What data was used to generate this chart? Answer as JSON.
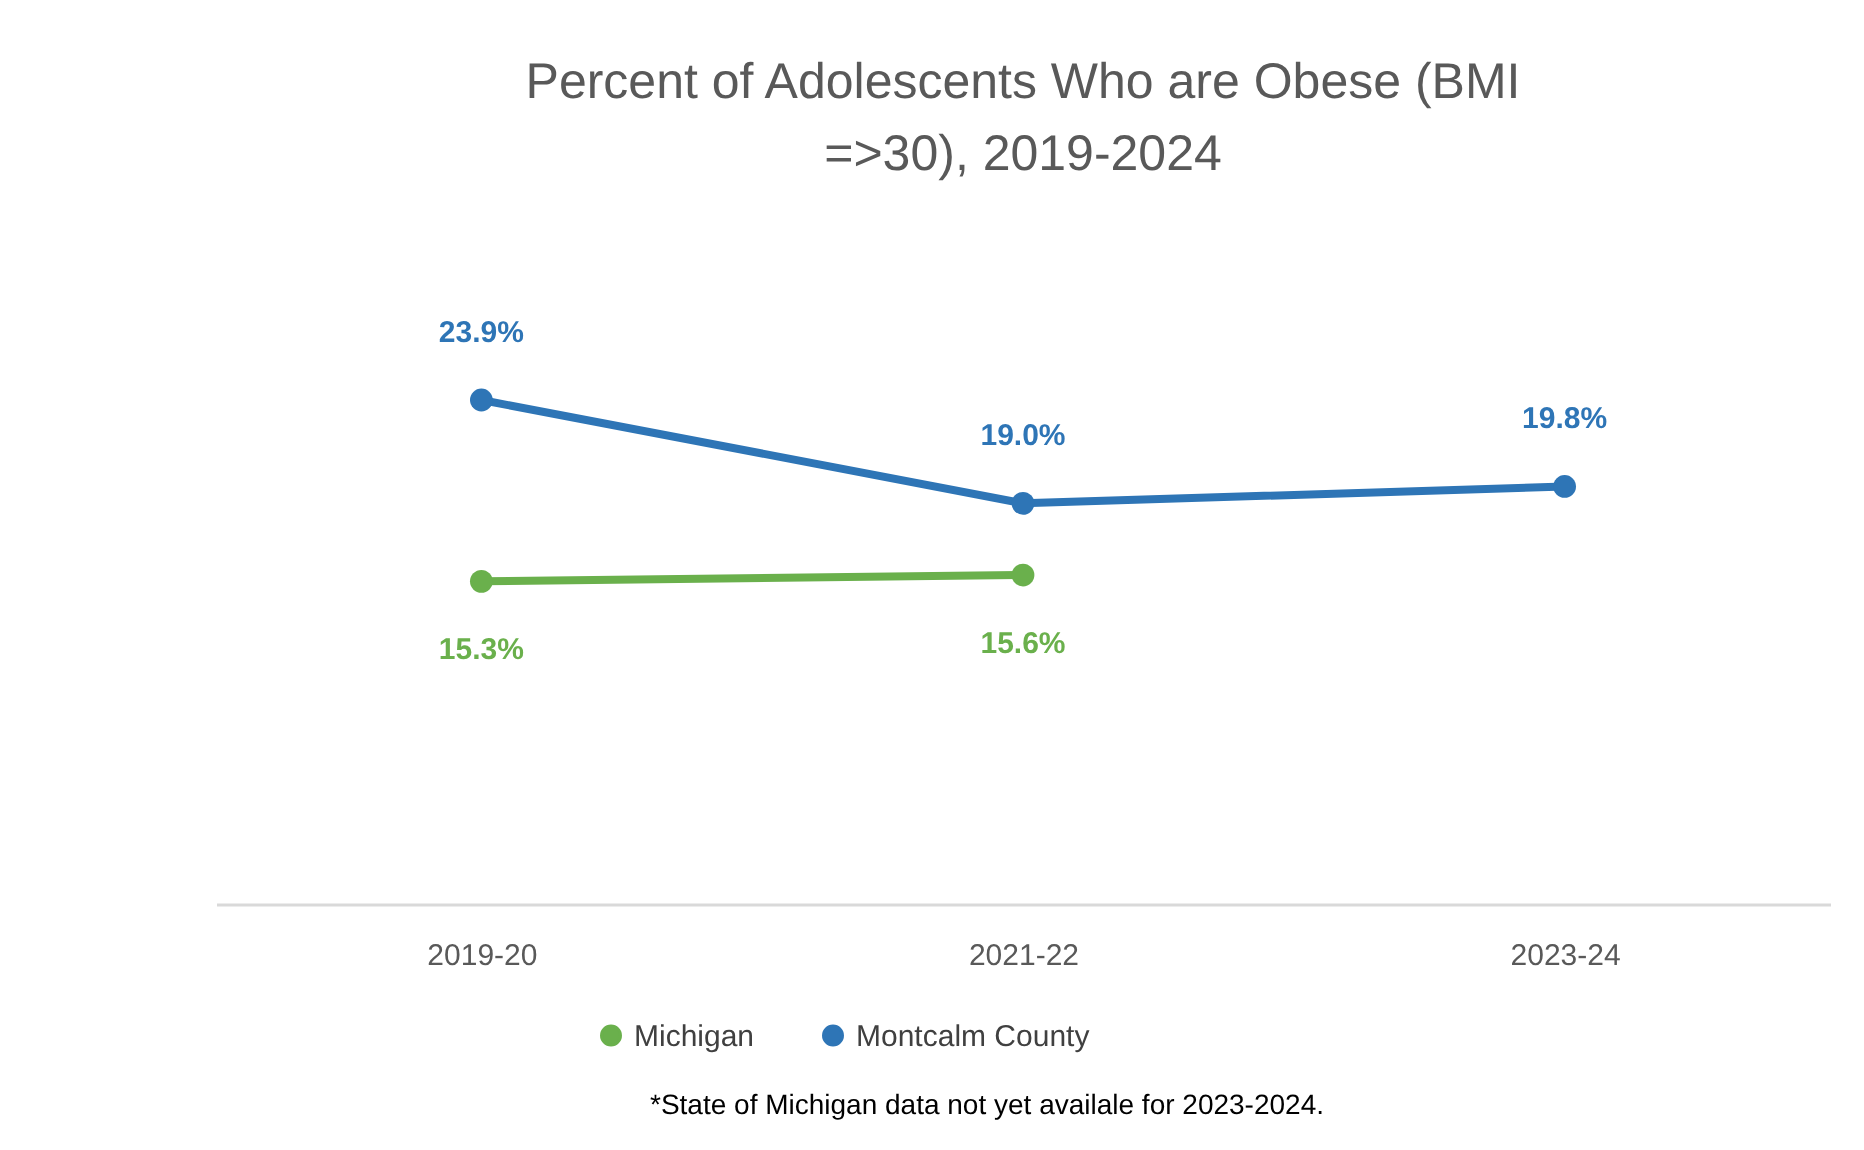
{
  "chart_data": {
    "type": "line",
    "title": "Percent of Adolescents Who are Obese (BMI =>30), 2019-2024",
    "categories": [
      "2019-20",
      "2021-22",
      "2023-24"
    ],
    "series": [
      {
        "name": "Michigan",
        "color": "#6ab04c",
        "values": [
          15.3,
          15.6,
          null
        ],
        "value_labels": [
          "15.3%",
          "15.6%",
          null
        ]
      },
      {
        "name": "Montcalm County",
        "color": "#2e75b6",
        "values": [
          23.9,
          19.0,
          19.8
        ],
        "value_labels": [
          "23.9%",
          "19.0%",
          "19.8%"
        ]
      }
    ],
    "tick_labels": "x",
    "grid": false,
    "legend": "bottom",
    "marker": "circle",
    "line_style": "solid",
    "annotations": [
      "*State of Michigan data not yet availale for 2023-2024."
    ]
  }
}
